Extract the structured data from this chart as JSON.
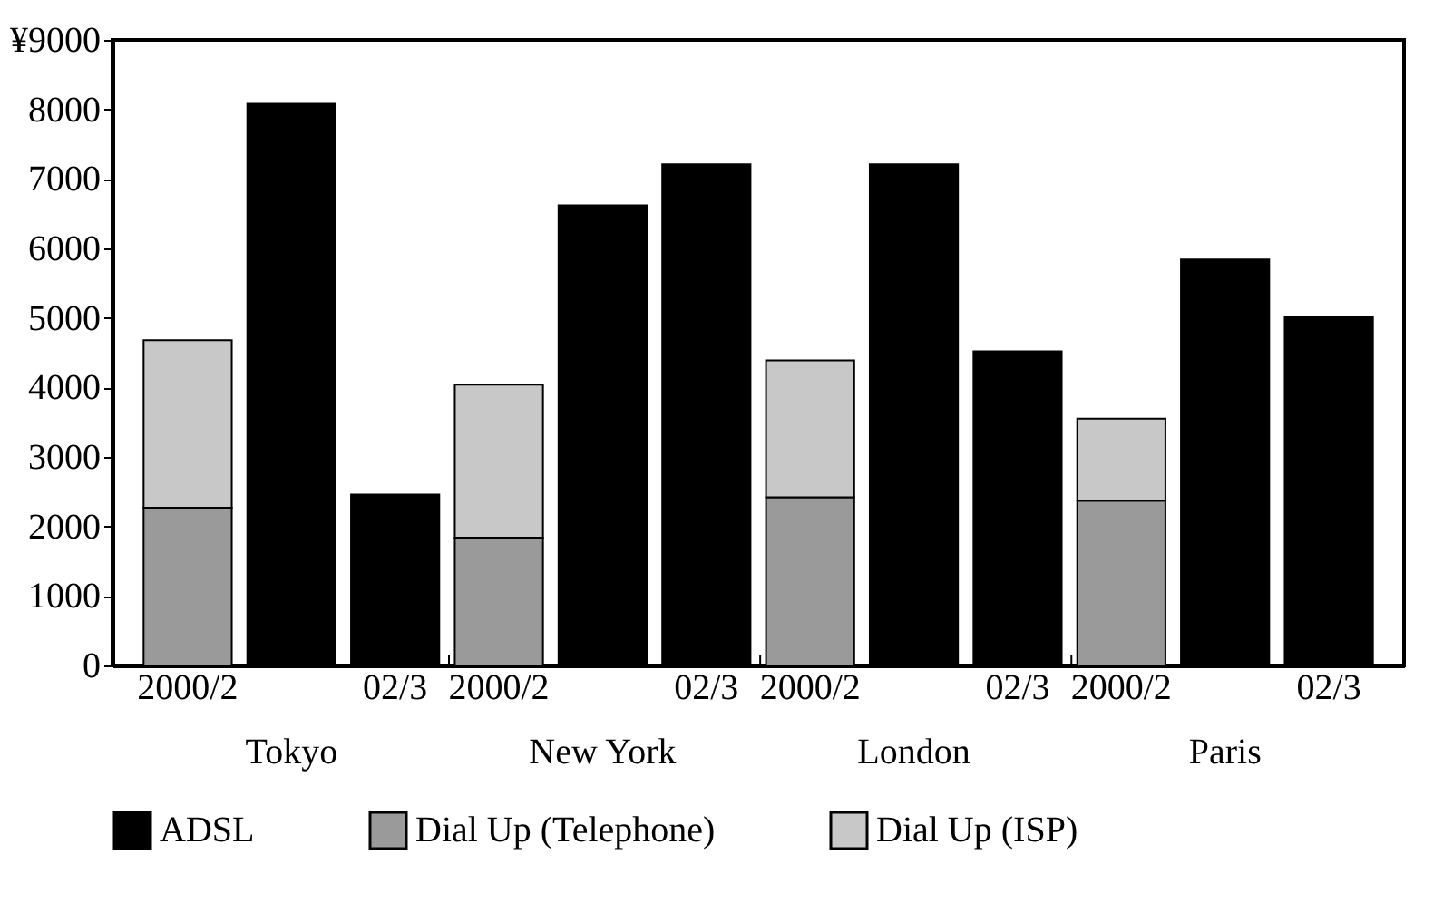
{
  "chart_data": {
    "type": "bar",
    "stacked": true,
    "legend": "bottom",
    "grid": false,
    "categories": [
      "2000/2",
      null,
      "02/3",
      "2000/2",
      null,
      "02/3",
      "2000/2",
      null,
      "02/3",
      "2000/2",
      null,
      "02/3"
    ],
    "series": [
      {
        "name": "ADSL",
        "color": "#000000",
        "values": [
          null,
          8080,
          2460,
          null,
          6620,
          7210,
          null,
          7210,
          4520,
          null,
          5840,
          5010
        ]
      },
      {
        "name": "Dial Up (Telephone)",
        "color": "#9a9a9a",
        "values": [
          2270,
          null,
          null,
          1840,
          null,
          null,
          2420,
          null,
          null,
          2370,
          null,
          null
        ]
      },
      {
        "name": "Dial Up (ISP)",
        "color": "#c8c8c8",
        "values": [
          2410,
          null,
          null,
          2200,
          null,
          null,
          1970,
          null,
          null,
          1180,
          null,
          null
        ]
      }
    ],
    "ylim": [
      0,
      9000
    ],
    "yticks": [
      0,
      1000,
      2000,
      3000,
      4000,
      5000,
      6000,
      7000,
      8000,
      {
        "value": 9000,
        "label": "¥9000"
      }
    ],
    "annotations": [
      "Tokyo",
      "New York",
      "London",
      "Paris"
    ]
  }
}
